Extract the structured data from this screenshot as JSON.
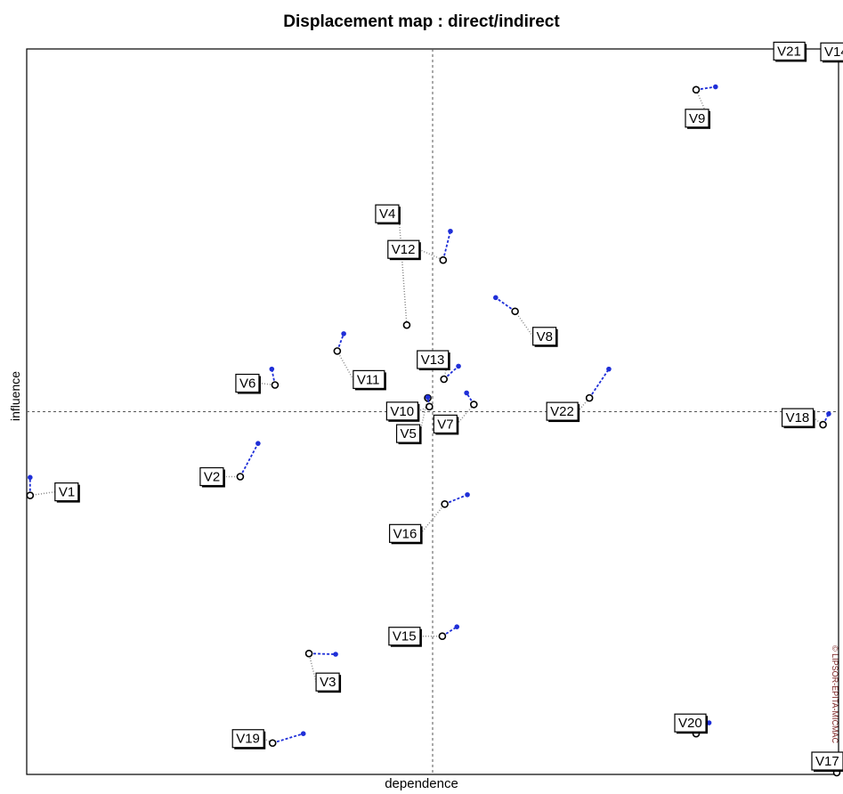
{
  "chart_data": {
    "type": "scatter",
    "title": "Displacement map :  direct/indirect",
    "xlabel": "dependence",
    "ylabel": "influence",
    "copyright": "© LIPSOR-EPITA-MICMAC",
    "colors": {
      "direct": "#000000",
      "indirect": "#1f2fd8",
      "frame": "#000000",
      "axis_cross": "#555555"
    },
    "grid": false,
    "legend": "none",
    "xlim": [
      0,
      1000
    ],
    "ylim": [
      0,
      1000
    ],
    "axis_cross": [
      500,
      500
    ],
    "series": [
      {
        "name": "direct",
        "marker": "open-circle"
      },
      {
        "name": "indirect",
        "marker": "filled-dot"
      }
    ],
    "points": [
      {
        "label": "V1",
        "direct": [
          2,
          384
        ],
        "indirect": [
          2,
          409
        ]
      },
      {
        "label": "V2",
        "direct": [
          262,
          410
        ],
        "indirect": [
          284,
          456
        ]
      },
      {
        "label": "V3",
        "direct": [
          347,
          165
        ],
        "indirect": [
          380,
          164
        ]
      },
      {
        "label": "V4",
        "direct": [
          468,
          620
        ],
        "indirect": [
          468,
          620
        ]
      },
      {
        "label": "V5",
        "direct": [
          494,
          519
        ],
        "indirect": [
          494,
          519
        ]
      },
      {
        "label": "V6",
        "direct": [
          305,
          537
        ],
        "indirect": [
          301,
          559
        ]
      },
      {
        "label": "V7",
        "direct": [
          551,
          510
        ],
        "indirect": [
          542,
          526
        ]
      },
      {
        "label": "V8",
        "direct": [
          602,
          639
        ],
        "indirect": [
          578,
          658
        ]
      },
      {
        "label": "V9",
        "direct": [
          826,
          946
        ],
        "indirect": [
          850,
          950
        ]
      },
      {
        "label": "V10",
        "direct": [
          496,
          507
        ],
        "indirect": [
          494,
          520
        ]
      },
      {
        "label": "V11",
        "direct": [
          382,
          584
        ],
        "indirect": [
          390,
          608
        ]
      },
      {
        "label": "V12",
        "direct": [
          513,
          710
        ],
        "indirect": [
          522,
          750
        ]
      },
      {
        "label": "V13",
        "direct": [
          514,
          545
        ],
        "indirect": [
          532,
          563
        ]
      },
      {
        "label": "V14",
        "direct": [
          1000,
          996
        ],
        "indirect": [
          989,
          997
        ]
      },
      {
        "label": "V15",
        "direct": [
          512,
          189
        ],
        "indirect": [
          530,
          202
        ]
      },
      {
        "label": "V16",
        "direct": [
          515,
          372
        ],
        "indirect": [
          543,
          385
        ]
      },
      {
        "label": "V17",
        "direct": [
          1000,
          0
        ],
        "indirect": [
          1000,
          0
        ]
      },
      {
        "label": "V18",
        "direct": [
          983,
          482
        ],
        "indirect": [
          990,
          497
        ]
      },
      {
        "label": "V19",
        "direct": [
          302,
          41
        ],
        "indirect": [
          340,
          54
        ]
      },
      {
        "label": "V20",
        "direct": [
          826,
          54
        ],
        "indirect": [
          842,
          69
        ]
      },
      {
        "label": "V21",
        "direct": [
          955,
          997
        ],
        "indirect": [
          944,
          996
        ]
      },
      {
        "label": "V22",
        "direct": [
          694,
          519
        ],
        "indirect": [
          718,
          559
        ]
      }
    ]
  }
}
